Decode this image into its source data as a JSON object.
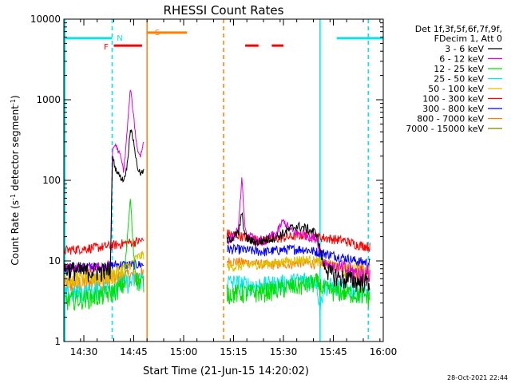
{
  "chart_data": {
    "type": "line",
    "title": "RHESSI Count Rates",
    "xlabel": "Start Time (21-Jun-15 14:20:02)",
    "ylabel_main": "Count Rate (s",
    "ylabel_sup": "-1",
    "ylabel_rest": " detector segment",
    "ylabel_sup2": "-1",
    "ylabel_end": ")",
    "yscale": "log",
    "ylim": [
      1,
      10000
    ],
    "xlim_min": [
      864,
      960
    ],
    "x_ticks": [
      {
        "t": 870,
        "label": "14:30"
      },
      {
        "t": 885,
        "label": "14:45"
      },
      {
        "t": 900,
        "label": "15:00"
      },
      {
        "t": 915,
        "label": "15:15"
      },
      {
        "t": 930,
        "label": "15:30"
      },
      {
        "t": 945,
        "label": "15:45"
      },
      {
        "t": 960,
        "label": "16:00"
      }
    ],
    "y_ticks": [
      {
        "v": 1,
        "label": "1"
      },
      {
        "v": 10,
        "label": "10"
      },
      {
        "v": 100,
        "label": "100"
      },
      {
        "v": 1000,
        "label": "1000"
      },
      {
        "v": 10000,
        "label": "10000"
      }
    ],
    "legend_header": [
      "Det 1f,3f,5f,6f,7f,9f,",
      "FDecim 1, Att 0"
    ],
    "legend": [
      {
        "name": "3 - 6 keV",
        "color": "#000000"
      },
      {
        "name": "6 - 12 keV",
        "color": "#e000e0"
      },
      {
        "name": "12 - 25 keV",
        "color": "#00e000"
      },
      {
        "name": "25 - 50 keV",
        "color": "#00e8e8"
      },
      {
        "name": "50 - 100 keV",
        "color": "#e0c000"
      },
      {
        "name": "100 - 300 keV",
        "color": "#ff0000"
      },
      {
        "name": "300 - 800 keV",
        "color": "#0000ff"
      },
      {
        "name": "800 - 7000 keV",
        "color": "#ff8000"
      },
      {
        "name": "7000 - 15000 keV",
        "color": "#808000"
      }
    ],
    "flag_bars": [
      {
        "label": "N",
        "color": "#00e8e8",
        "segments": [
          [
            864,
            878.5
          ],
          [
            946,
            960
          ]
        ],
        "y": 5800
      },
      {
        "label": "F",
        "color": "#ff0000",
        "segments": [
          [
            879,
            887.5
          ],
          [
            918.5,
            922.5
          ],
          [
            926.5,
            930
          ]
        ],
        "y": 4700
      },
      {
        "label": "S",
        "color": "#ff8000",
        "segments": [
          [
            889,
            901
          ]
        ],
        "y": 6800
      }
    ],
    "vlines": [
      {
        "t": 864.3,
        "color": "#00e8e8",
        "style": "solid"
      },
      {
        "t": 878.5,
        "color": "#00e8e8",
        "style": "dashed"
      },
      {
        "t": 889,
        "color": "#ff8000",
        "style": "solid"
      },
      {
        "t": 912,
        "color": "#ff8000",
        "style": "dashed"
      },
      {
        "t": 941,
        "color": "#00e8e8",
        "style": "solid"
      },
      {
        "t": 955.5,
        "color": "#00e8e8",
        "style": "dashed"
      }
    ],
    "series": [
      {
        "name": "3 - 6 keV",
        "color": "#000000",
        "segments": [
          {
            "t": [
              864,
              870,
              876,
              878,
              878.6,
              879.5,
              881,
              882,
              883,
              884,
              885,
              886,
              887,
              888
            ],
            "v": [
              8,
              7.5,
              7.5,
              8,
              200,
              140,
              110,
              100,
              150,
              450,
              300,
              150,
              120,
              130
            ]
          },
          {
            "t": [
              913,
              915,
              916.5,
              917.5,
              918.5,
              920,
              922,
              924,
              926,
              928,
              930,
              932,
              934,
              936,
              938,
              940,
              942,
              944,
              946,
              948,
              950,
              952,
              954,
              956
            ],
            "v": [
              18,
              20,
              22,
              40,
              20,
              18,
              17,
              18,
              19,
              20,
              22,
              25,
              27,
              26,
              24,
              22,
              9,
              7,
              6.5,
              6,
              6,
              5.5,
              5.5,
              5.5
            ]
          }
        ]
      },
      {
        "name": "6 - 12 keV",
        "color": "#e000e0",
        "segments": [
          {
            "t": [
              864,
              870,
              876,
              878,
              878.6,
              879.5,
              881,
              882,
              883,
              884,
              885,
              886,
              887,
              888
            ],
            "v": [
              8.5,
              8,
              8.5,
              9,
              240,
              280,
              200,
              130,
              400,
              1400,
              600,
              250,
              200,
              300
            ]
          },
          {
            "t": [
              913,
              915,
              916.5,
              917.5,
              918.5,
              920,
              922,
              924,
              926,
              928,
              930,
              932,
              934,
              936,
              938,
              940,
              942,
              944,
              946,
              948,
              950,
              952,
              954,
              956
            ],
            "v": [
              18,
              20,
              25,
              110,
              22,
              20,
              18,
              17,
              20,
              22,
              32,
              24,
              22,
              22,
              20,
              19,
              10,
              9,
              8,
              8,
              7.5,
              7,
              7,
              7
            ]
          }
        ]
      },
      {
        "name": "12 - 25 keV",
        "color": "#00e000",
        "segments": [
          {
            "t": [
              864,
              868,
              872,
              876,
              878,
              880,
              882,
              884,
              885,
              886,
              888
            ],
            "v": [
              3.2,
              3.4,
              3.5,
              3.8,
              4,
              4.5,
              5,
              60,
              12,
              5.5,
              5.5
            ]
          },
          {
            "t": [
              913,
              916,
              920,
              924,
              928,
              932,
              936,
              940,
              942,
              946,
              950,
              954,
              956
            ],
            "v": [
              4,
              4,
              4,
              4.2,
              4.5,
              4.8,
              5,
              5.5,
              4.5,
              4.2,
              4,
              3.8,
              3.5
            ]
          }
        ]
      },
      {
        "name": "25 - 50 keV",
        "color": "#00e8e8",
        "segments": [
          {
            "t": [
              864,
              868,
              872,
              876,
              880,
              884,
              886,
              888
            ],
            "v": [
              3.8,
              4,
              4.2,
              4.5,
              5,
              5.5,
              6,
              6
            ]
          },
          {
            "t": [
              913,
              916,
              920,
              924,
              928,
              932,
              936,
              940,
              941,
              942,
              946,
              950,
              954,
              956
            ],
            "v": [
              5.5,
              5.3,
              5,
              5,
              5.2,
              5.5,
              5.8,
              5.8,
              2.5,
              5,
              4.8,
              4.5,
              4.2,
              4
            ]
          }
        ]
      },
      {
        "name": "50 - 100 keV",
        "color": "#e0c000",
        "segments": [
          {
            "t": [
              864,
              870,
              876,
              880,
              884,
              886,
              888
            ],
            "v": [
              6,
              6.2,
              6.5,
              7,
              9,
              11,
              12
            ]
          },
          {
            "t": [
              913,
              916,
              920,
              924,
              928,
              932,
              936,
              940,
              944,
              948,
              952,
              956
            ],
            "v": [
              8.5,
              8.5,
              9,
              9.2,
              9.5,
              10,
              10.5,
              10,
              9,
              8,
              7.5,
              7
            ]
          }
        ]
      },
      {
        "name": "100 - 300 keV",
        "color": "#ff0000",
        "segments": [
          {
            "t": [
              864,
              868,
              872,
              876,
              880,
              884,
              888
            ],
            "v": [
              13.5,
              14,
              14.5,
              15,
              16,
              17,
              18
            ]
          },
          {
            "t": [
              913,
              916,
              920,
              924,
              928,
              932,
              936,
              940,
              944,
              948,
              952,
              956
            ],
            "v": [
              22,
              21,
              19,
              18,
              19,
              20,
              21,
              20,
              19,
              18,
              16,
              15
            ]
          }
        ]
      },
      {
        "name": "300 - 800 keV",
        "color": "#0000ff",
        "segments": [
          {
            "t": [
              864,
              868,
              872,
              876,
              880,
              884,
              888
            ],
            "v": [
              8,
              8.2,
              8.5,
              8.5,
              9,
              9,
              9
            ]
          },
          {
            "t": [
              913,
              916,
              920,
              924,
              928,
              932,
              936,
              940,
              944,
              948,
              952,
              956
            ],
            "v": [
              14,
              14,
              13.5,
              13,
              13.5,
              14,
              14,
              13,
              12,
              11,
              10,
              9.5
            ]
          }
        ]
      },
      {
        "name": "800 - 7000 keV",
        "color": "#ff8000",
        "segments": [
          {
            "t": [
              864,
              868,
              872,
              876,
              880,
              884,
              888
            ],
            "v": [
              5,
              5.2,
              5.5,
              5.8,
              6.2,
              6.5,
              6.5
            ]
          },
          {
            "t": [
              913,
              916,
              920,
              924,
              928,
              932,
              936,
              940,
              944,
              948,
              952,
              956
            ],
            "v": [
              10,
              9.8,
              9.5,
              9,
              9,
              9.2,
              9.5,
              9.2,
              9,
              8.5,
              8,
              7.5
            ]
          }
        ]
      }
    ],
    "timestamp": "28-Oct-2021 22:44"
  }
}
